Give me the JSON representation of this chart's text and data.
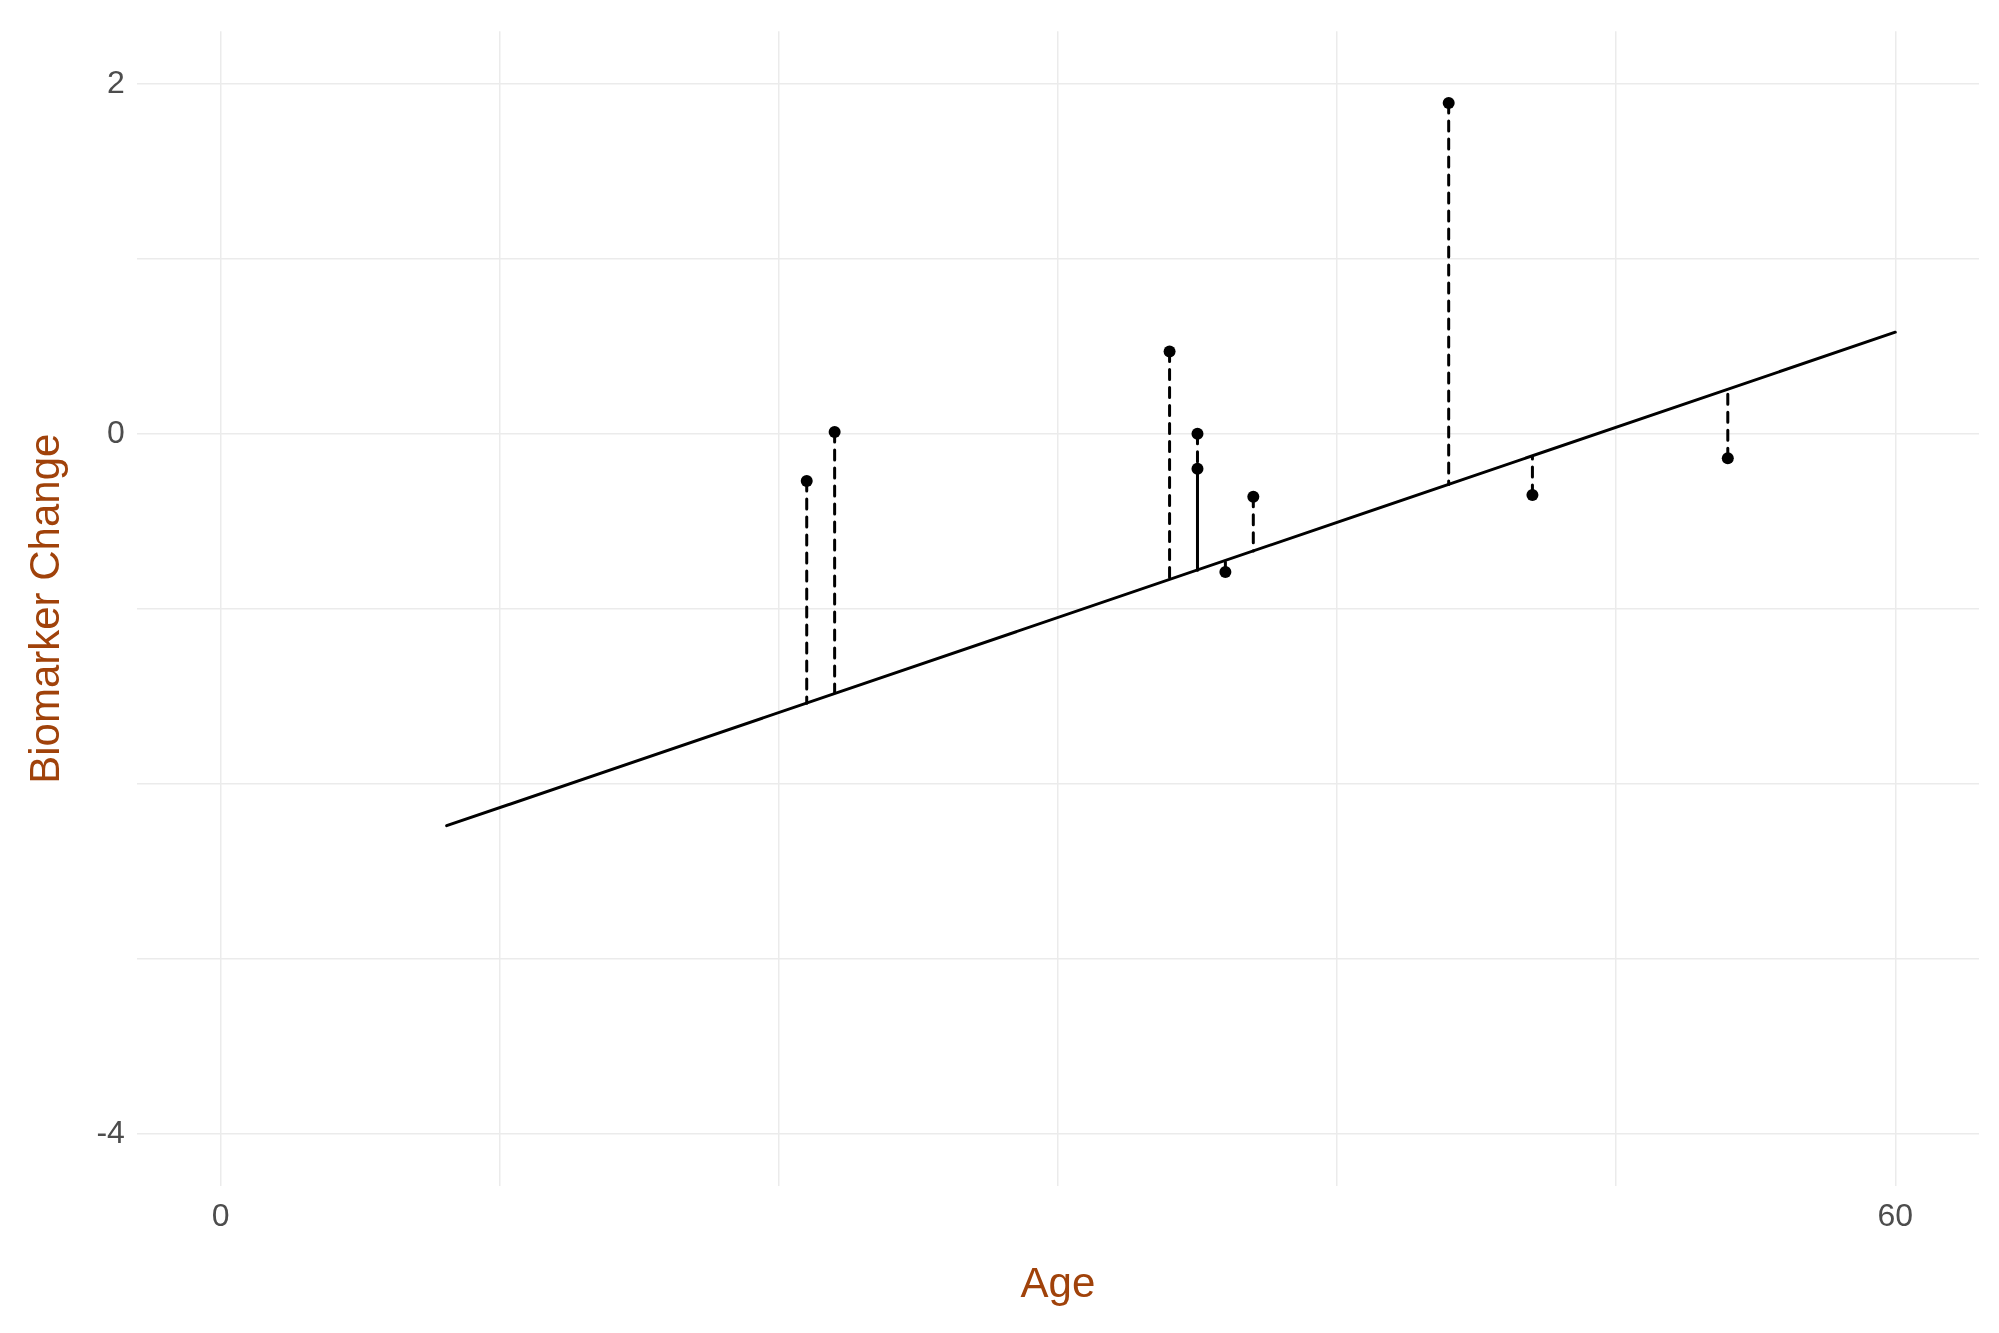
{
  "chart_data": {
    "type": "scatter",
    "xlabel": "Age",
    "ylabel": "Biomarker Change",
    "xlim": [
      -3,
      63
    ],
    "ylim": [
      -4.3,
      2.3
    ],
    "xticks": [
      0,
      {
        "value": 10,
        "label": null
      },
      {
        "value": 20,
        "label": null
      },
      {
        "value": 30,
        "label": null
      },
      {
        "value": 40,
        "label": null
      },
      {
        "value": 50,
        "label": null
      },
      60
    ],
    "yticks": [
      -4,
      {
        "value": -3,
        "label": null
      },
      {
        "value": -2,
        "label": null
      },
      {
        "value": -1,
        "label": null
      },
      0,
      {
        "value": 1,
        "label": null
      },
      2
    ],
    "grid": true,
    "legend": false,
    "marker": "circle",
    "series": [
      {
        "type": "line",
        "color": "#000000",
        "marker": "none",
        "line_style": "solid",
        "x": [
          8.1,
          60
        ],
        "values": [
          -2.24,
          0.58
        ]
      },
      {
        "type": "line",
        "color": "#000000",
        "marker": "none",
        "line_style": "dashed",
        "x": [
          21,
          21
        ],
        "values": [
          -0.27,
          -1.54
        ]
      },
      {
        "type": "line",
        "color": "#000000",
        "marker": "none",
        "line_style": "dashed",
        "x": [
          22,
          22
        ],
        "values": [
          0.01,
          -1.48
        ]
      },
      {
        "type": "line",
        "color": "#000000",
        "marker": "none",
        "line_style": "dashed",
        "x": [
          34,
          34
        ],
        "values": [
          0.47,
          -0.83
        ]
      },
      {
        "type": "line",
        "color": "#000000",
        "marker": "none",
        "line_style": "dashed",
        "x": [
          35,
          35
        ],
        "values": [
          0,
          -0.2
        ]
      },
      {
        "type": "line",
        "color": "#000000",
        "marker": "none",
        "line_style": "solid",
        "x": [
          35,
          35
        ],
        "values": [
          -0.2,
          -0.78
        ]
      },
      {
        "type": "line",
        "color": "#000000",
        "marker": "none",
        "line_style": "dashed",
        "x": [
          36,
          36
        ],
        "values": [
          -0.79,
          -0.72
        ]
      },
      {
        "type": "line",
        "color": "#000000",
        "marker": "none",
        "line_style": "dashed",
        "x": [
          37,
          37
        ],
        "values": [
          -0.36,
          -0.67
        ]
      },
      {
        "type": "line",
        "color": "#000000",
        "marker": "none",
        "line_style": "dashed",
        "x": [
          44,
          44
        ],
        "values": [
          1.89,
          -0.29
        ]
      },
      {
        "type": "line",
        "color": "#000000",
        "marker": "none",
        "line_style": "dashed",
        "x": [
          47,
          47
        ],
        "values": [
          -0.35,
          -0.13
        ]
      },
      {
        "type": "line",
        "color": "#000000",
        "marker": "none",
        "line_style": "dashed",
        "x": [
          54,
          54
        ],
        "values": [
          -0.14,
          0.25
        ]
      },
      {
        "type": "scatter",
        "color": "#000000",
        "x": [
          21,
          22,
          34,
          35,
          35,
          36,
          37,
          44,
          47,
          54
        ],
        "values": [
          -0.27,
          0.01,
          0.47,
          0,
          -0.2,
          -0.79,
          -0.36,
          1.89,
          -0.35,
          -0.14
        ]
      }
    ]
  }
}
